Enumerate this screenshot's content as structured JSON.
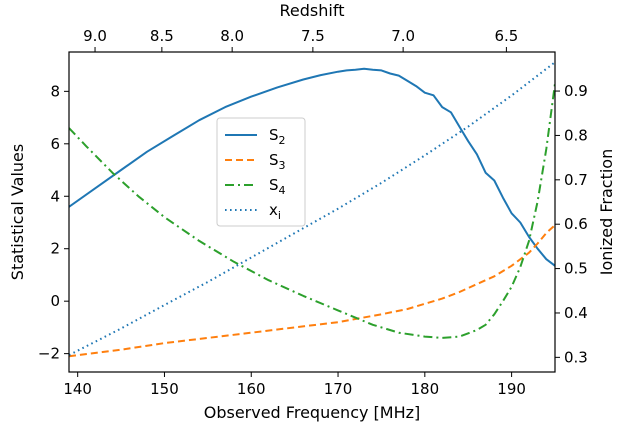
{
  "chart_data": {
    "type": "line",
    "xlabel": "Observed Frequency [MHz]",
    "ylabel_left": "Statistical Values",
    "ylabel_right": "Ionized Fraction",
    "xlabel_top": "Redshift",
    "xlim": [
      139,
      195
    ],
    "ylim_left": [
      -2.7,
      9.5
    ],
    "ylim_right": [
      0.267,
      0.988
    ],
    "x_ticks": [
      140,
      150,
      160,
      170,
      180,
      190
    ],
    "y_ticks_left": [
      -2,
      0,
      2,
      4,
      6,
      8
    ],
    "y_ticks_right": [
      0.3,
      0.4,
      0.5,
      0.6,
      0.7,
      0.8,
      0.9
    ],
    "top_ticks": [
      {
        "label": "9.0",
        "freq": 142.0
      },
      {
        "label": "8.5",
        "freq": 149.7
      },
      {
        "label": "8.0",
        "freq": 157.8
      },
      {
        "label": "7.5",
        "freq": 167.1
      },
      {
        "label": "7.0",
        "freq": 177.5
      },
      {
        "label": "6.5",
        "freq": 189.4
      }
    ],
    "grid": false,
    "legend_position": "center-left",
    "series": [
      {
        "name": "S2",
        "color": "#1f77b4",
        "style": "solid",
        "axis": "left",
        "x": [
          139,
          142,
          145,
          148,
          151,
          154,
          157,
          160,
          163,
          166,
          168,
          170,
          171,
          172,
          173,
          174,
          175,
          176,
          177,
          178,
          179,
          180,
          181,
          182,
          183,
          184,
          185,
          186,
          187,
          188,
          189,
          190,
          191,
          192,
          193,
          194,
          195
        ],
        "values": [
          3.6,
          4.3,
          5.0,
          5.7,
          6.3,
          6.9,
          7.4,
          7.8,
          8.15,
          8.45,
          8.62,
          8.75,
          8.8,
          8.82,
          8.86,
          8.82,
          8.8,
          8.68,
          8.6,
          8.4,
          8.2,
          7.95,
          7.85,
          7.4,
          7.2,
          6.65,
          6.1,
          5.6,
          4.9,
          4.6,
          3.95,
          3.35,
          3.0,
          2.45,
          2.0,
          1.6,
          1.35
        ]
      },
      {
        "name": "S3",
        "color": "#ff7f0e",
        "style": "dashed",
        "axis": "left",
        "x": [
          139,
          145,
          150,
          155,
          160,
          165,
          170,
          175,
          178,
          180,
          182,
          184,
          186,
          188,
          190,
          192,
          193,
          194,
          195
        ],
        "values": [
          -2.1,
          -1.85,
          -1.6,
          -1.4,
          -1.2,
          -1.0,
          -0.8,
          -0.5,
          -0.3,
          -0.1,
          0.1,
          0.35,
          0.65,
          0.95,
          1.35,
          1.85,
          2.2,
          2.6,
          2.9
        ]
      },
      {
        "name": "S4",
        "color": "#2ca02c",
        "style": "dashdot",
        "axis": "left",
        "x": [
          139,
          141,
          144,
          147,
          150,
          154,
          158,
          162,
          166,
          170,
          174,
          177,
          180,
          182,
          184,
          186,
          187,
          188,
          189,
          190,
          191,
          192,
          193,
          194,
          195
        ],
        "values": [
          6.6,
          5.9,
          4.9,
          4.0,
          3.2,
          2.3,
          1.5,
          0.8,
          0.2,
          -0.35,
          -0.9,
          -1.2,
          -1.35,
          -1.4,
          -1.35,
          -1.1,
          -0.9,
          -0.5,
          0.0,
          0.55,
          1.3,
          2.3,
          3.8,
          5.8,
          8.3
        ]
      },
      {
        "name": "xi",
        "color": "#1f77b4",
        "style": "dotted",
        "axis": "right",
        "x": [
          139,
          145,
          150,
          155,
          160,
          165,
          170,
          175,
          180,
          185,
          190,
          195
        ],
        "values": [
          0.305,
          0.365,
          0.418,
          0.47,
          0.525,
          0.58,
          0.635,
          0.693,
          0.755,
          0.82,
          0.89,
          0.965
        ]
      }
    ]
  },
  "legend": [
    {
      "base": "S",
      "sub": "2",
      "color": "#1f77b4",
      "style": "solid"
    },
    {
      "base": "S",
      "sub": "3",
      "color": "#ff7f0e",
      "style": "dashed"
    },
    {
      "base": "S",
      "sub": "4",
      "color": "#2ca02c",
      "style": "dashdot"
    },
    {
      "base": "x",
      "sub": "i",
      "color": "#1f77b4",
      "style": "dotted"
    }
  ]
}
